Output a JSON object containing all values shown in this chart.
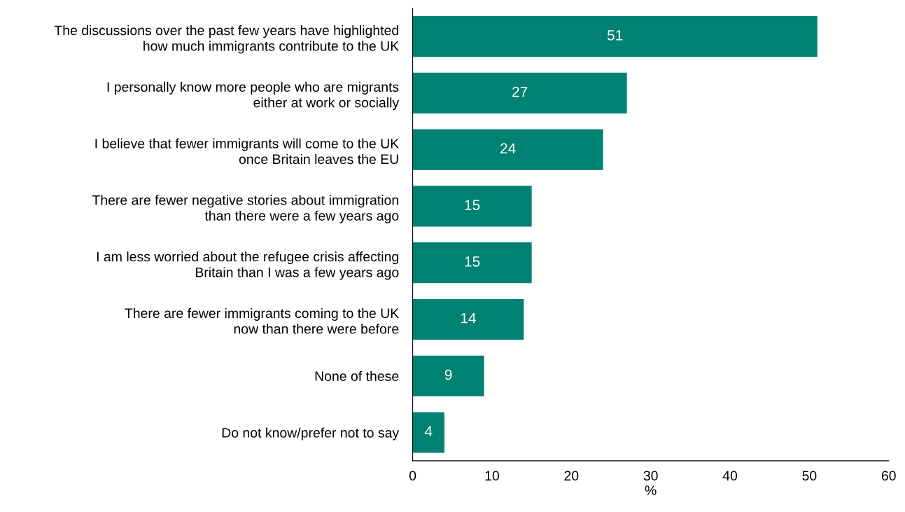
{
  "chart_data": {
    "type": "bar",
    "orientation": "horizontal",
    "xlabel": "%",
    "categories": [
      "The discussions over the past few years have highlighted\nhow much immigrants contribute to the UK",
      "I personally know more people who are migrants\neither at work or socially",
      "I believe that fewer immigrants will come to the UK\nonce Britain leaves the EU",
      "There are fewer negative stories about immigration\nthan there were a few years ago",
      "I am less worried about the refugee crisis affecting\nBritain than I was a few years ago",
      "There are fewer immigrants coming to the UK\nnow than there were before",
      "None of these",
      "Do not know/prefer not to say"
    ],
    "values": [
      51,
      27,
      24,
      15,
      15,
      14,
      9,
      4
    ],
    "color": "#008272",
    "xlim": [
      0,
      60
    ],
    "xticks": [
      0,
      10,
      20,
      30,
      40,
      50,
      60
    ],
    "grid": false,
    "legend": false,
    "data_labels": true
  }
}
